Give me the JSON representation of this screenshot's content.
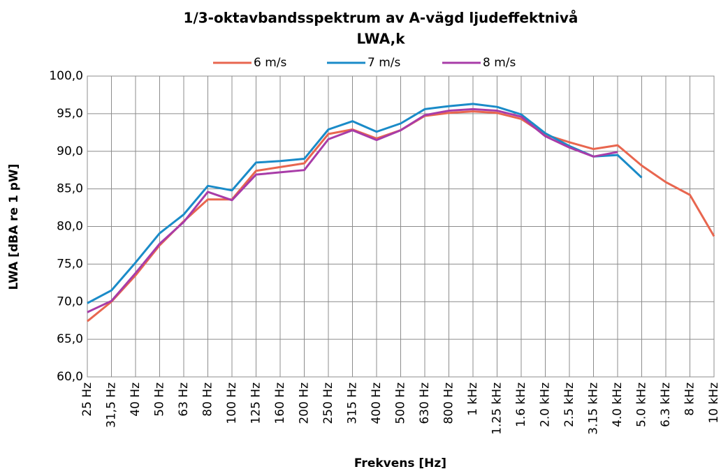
{
  "chart_data": {
    "type": "line",
    "title": "1/3-oktavbandsspektrum av A-vägd ljudeffektnivå",
    "subtitle": "LWA,k",
    "x_label": "Frekvens [Hz]",
    "y_label": "LWA [dBA re 1 pW]",
    "categories": [
      "25 Hz",
      "31,5 Hz",
      "40 Hz",
      "50 Hz",
      "63 Hz",
      "80 Hz",
      "100 Hz",
      "125 Hz",
      "160 Hz",
      "200 Hz",
      "250 Hz",
      "315 Hz",
      "400 Hz",
      "500 Hz",
      "630 Hz",
      "800 Hz",
      "1 kHz",
      "1.25 kHz",
      "1.6 kHz",
      "2.0 kHz",
      "2.5 kHz",
      "3.15 kHz",
      "4.0 kHz",
      "5.0 kHz",
      "6.3 kHz",
      "8 kHz",
      "10 kHz"
    ],
    "series": [
      {
        "name": "6 m/s",
        "color": "#e8664f",
        "values": [
          67.4,
          70.0,
          73.5,
          77.5,
          80.7,
          83.6,
          83.6,
          87.4,
          87.9,
          88.4,
          92.3,
          92.9,
          91.7,
          92.8,
          94.7,
          95.1,
          95.3,
          95.1,
          94.3,
          92.2,
          91.2,
          90.3,
          90.8,
          88.1,
          85.9,
          84.2,
          78.7
        ]
      },
      {
        "name": "7 m/s",
        "color": "#1a8bc8",
        "values": [
          69.8,
          71.5,
          75.2,
          79.1,
          81.6,
          85.4,
          84.8,
          88.5,
          88.7,
          89.0,
          92.9,
          94.0,
          92.6,
          93.7,
          95.6,
          96.0,
          96.3,
          95.9,
          94.9,
          92.4,
          90.7,
          89.3,
          89.5,
          86.5,
          null,
          null,
          null
        ]
      },
      {
        "name": "8 m/s",
        "color": "#a83ca8",
        "values": [
          68.6,
          70.1,
          73.8,
          77.7,
          80.6,
          84.6,
          83.5,
          86.9,
          87.2,
          87.5,
          91.6,
          92.8,
          91.5,
          92.8,
          94.8,
          95.4,
          95.6,
          95.4,
          94.6,
          92.0,
          90.5,
          89.3,
          89.9,
          null,
          null,
          null,
          null
        ]
      }
    ],
    "ylim": [
      60,
      100
    ],
    "yticks": [
      {
        "value": 60,
        "label": "60,0"
      },
      {
        "value": 65,
        "label": "65,0"
      },
      {
        "value": 70,
        "label": "70,0"
      },
      {
        "value": 75,
        "label": "75,0"
      },
      {
        "value": 80,
        "label": "80,0"
      },
      {
        "value": 85,
        "label": "85,0"
      },
      {
        "value": 90,
        "label": "90,0"
      },
      {
        "value": 95,
        "label": "95,0"
      },
      {
        "value": 100,
        "label": "100,0"
      }
    ],
    "grid": true,
    "legend": "top"
  }
}
